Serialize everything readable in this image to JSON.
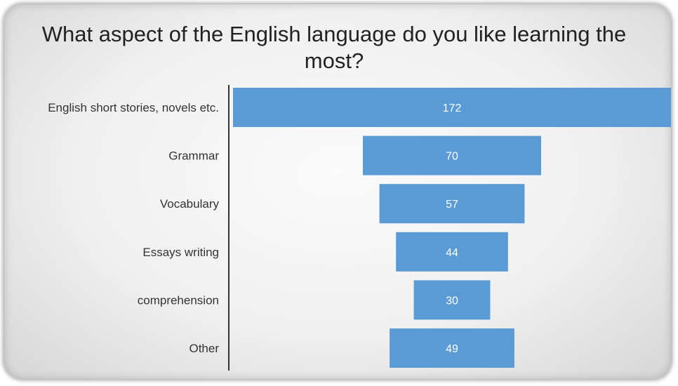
{
  "chart_data": {
    "type": "bar",
    "orientation": "horizontal-funnel",
    "title": "What aspect of the English language do you like learning the most?",
    "categories": [
      "English short stories, novels etc.",
      "Grammar",
      "Vocabulary",
      "Essays writing",
      "comprehension",
      "Other"
    ],
    "values": [
      172,
      70,
      57,
      44,
      30,
      49
    ],
    "data_labels": [
      "172",
      "70",
      "57",
      "44",
      "30",
      "49"
    ],
    "bar_color": "#5b9bd5",
    "label_color": "#ffffff",
    "xlim": [
      0,
      172
    ],
    "grid": false,
    "legend": "none"
  }
}
